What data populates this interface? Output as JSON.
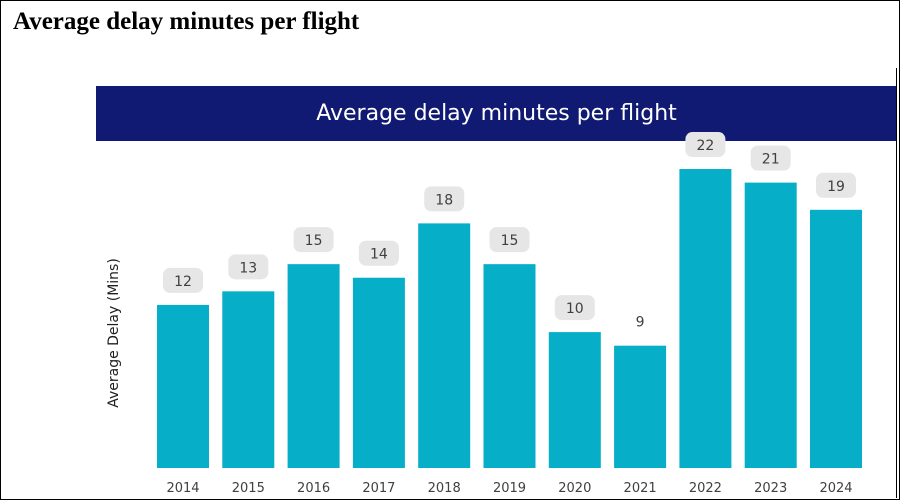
{
  "page": {
    "title": "Average delay minutes per flight"
  },
  "colors": {
    "banner": "#111a72",
    "bar": "#07aec8",
    "label_bg": "#e6e6e6",
    "label_text": "#404040"
  },
  "chart_data": {
    "type": "bar",
    "title": "Average delay minutes per flight",
    "xlabel": "",
    "ylabel": "Average  Delay (Mins)",
    "categories": [
      "2014",
      "2015",
      "2016",
      "2017",
      "2018",
      "2019",
      "2020",
      "2021",
      "2022",
      "2023",
      "2024"
    ],
    "values": [
      12,
      13,
      15,
      14,
      18,
      15,
      10,
      9,
      22,
      21,
      19
    ],
    "boxed_labels": [
      true,
      true,
      true,
      true,
      true,
      true,
      true,
      false,
      true,
      true,
      true
    ],
    "ylim": [
      0,
      23.4
    ],
    "grid": false,
    "legend": "none"
  }
}
